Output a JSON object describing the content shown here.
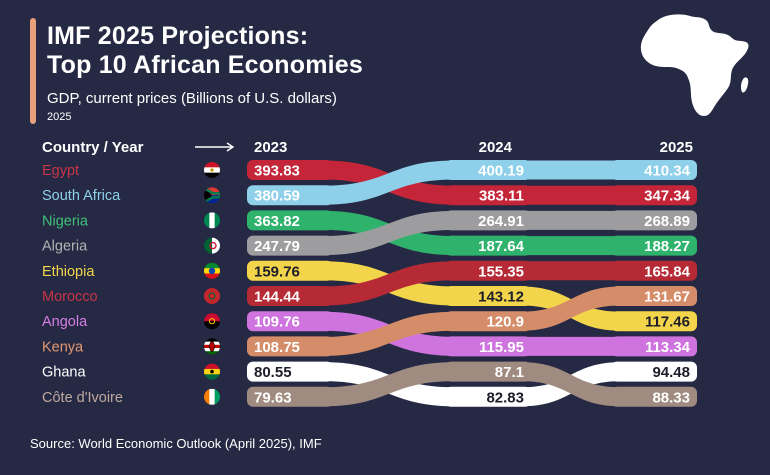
{
  "title_line1": "IMF 2025 Projections:",
  "title_line2": "Top 10 African Economies",
  "subtitle": "GDP, current prices (Billions of U.S. dollars)",
  "year_label": "2025",
  "source": "Source: World Economic Outlook (April 2025), IMF",
  "colors": {
    "background": "#262943",
    "accent": "#e8a07a"
  },
  "icons": [
    "africa-map-icon",
    "arrow-right-icon",
    "flag-icons"
  ],
  "chart_data": {
    "type": "bump",
    "header_label": "Country / Year",
    "years": [
      "2023",
      "2024",
      "2025"
    ],
    "series": [
      {
        "name": "Egypt",
        "values": [
          393.83,
          383.11,
          347.34
        ],
        "labels": [
          "393.83",
          "383.11",
          "347.34"
        ],
        "color": "#c42538",
        "text_color": "#ffffff",
        "label_color": "#c93446"
      },
      {
        "name": "South Africa",
        "values": [
          380.59,
          400.19,
          410.34
        ],
        "labels": [
          "380.59",
          "400.19",
          "410.34"
        ],
        "color": "#8ed0ea",
        "text_color": "#ffffff",
        "label_color": "#8ed0ea"
      },
      {
        "name": "Nigeria",
        "values": [
          363.82,
          187.64,
          188.27
        ],
        "labels": [
          "363.82",
          "187.64",
          "188.27"
        ],
        "color": "#2fb36c",
        "text_color": "#ffffff",
        "label_color": "#3fc07a"
      },
      {
        "name": "Algeria",
        "values": [
          247.79,
          264.91,
          268.89
        ],
        "labels": [
          "247.79",
          "264.91",
          "268.89"
        ],
        "color": "#9d9d9f",
        "text_color": "#ffffff",
        "label_color": "#b3b3b5"
      },
      {
        "name": "Ethiopia",
        "values": [
          159.76,
          143.12,
          117.46
        ],
        "labels": [
          "159.76",
          "143.12",
          "117.46"
        ],
        "color": "#f2d54a",
        "text_color": "#1c1c2a",
        "label_color": "#f2d54a"
      },
      {
        "name": "Morocco",
        "values": [
          144.44,
          155.35,
          165.84
        ],
        "labels": [
          "144.44",
          "155.35",
          "165.84"
        ],
        "color": "#b52a35",
        "text_color": "#ffffff",
        "label_color": "#c93446"
      },
      {
        "name": "Angola",
        "values": [
          109.76,
          115.95,
          113.34
        ],
        "labels": [
          "109.76",
          "115.95",
          "113.34"
        ],
        "color": "#cf74df",
        "text_color": "#ffffff",
        "label_color": "#d47ee6"
      },
      {
        "name": "Kenya",
        "values": [
          108.75,
          120.9,
          131.67
        ],
        "labels": [
          "108.75",
          "120.9",
          "131.67"
        ],
        "color": "#d58c68",
        "text_color": "#ffffff",
        "label_color": "#e39a72"
      },
      {
        "name": "Ghana",
        "values": [
          80.55,
          82.83,
          94.48
        ],
        "labels": [
          "80.55",
          "82.83",
          "94.48"
        ],
        "color": "#ffffff",
        "text_color": "#1c1c2a",
        "label_color": "#ffffff"
      },
      {
        "name": "Côte d'Ivoire",
        "values": [
          79.63,
          87.1,
          88.33
        ],
        "labels": [
          "79.63",
          "87.1",
          "88.33"
        ],
        "color": "#a08b80",
        "text_color": "#ffffff",
        "label_color": "#bfa99e"
      }
    ]
  }
}
